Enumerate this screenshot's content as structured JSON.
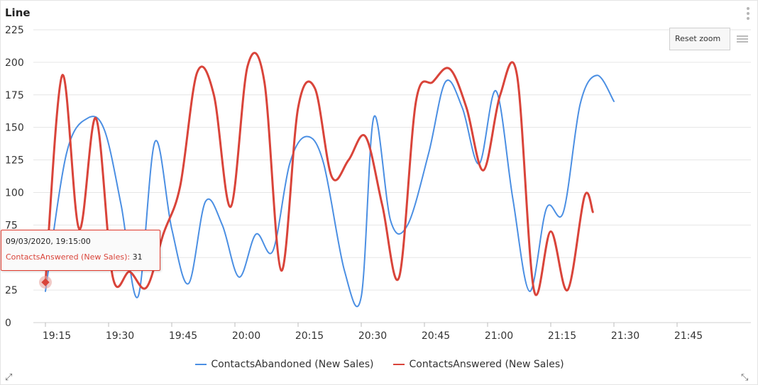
{
  "chart_data": {
    "type": "line",
    "title": "Line",
    "ylim": [
      0,
      225
    ],
    "yticks": [
      0,
      25,
      50,
      75,
      100,
      125,
      150,
      175,
      200,
      225
    ],
    "xlim": [
      "19:15",
      "21:51"
    ],
    "xticks": [
      "19:15",
      "19:30",
      "19:45",
      "20:00",
      "20:15",
      "20:30",
      "20:45",
      "21:00",
      "21:15",
      "21:30",
      "21:45"
    ],
    "grid": true,
    "legend_position": "bottom",
    "series": [
      {
        "name": "ContactsAbandoned (New Sales)",
        "color": "#4b8fe3",
        "points": [
          [
            "19:15",
            24
          ],
          [
            "19:20",
            130
          ],
          [
            "19:25",
            157
          ],
          [
            "19:29",
            148
          ],
          [
            "19:33",
            90
          ],
          [
            "19:37",
            20
          ],
          [
            "19:41",
            139
          ],
          [
            "19:45",
            72
          ],
          [
            "19:49",
            30
          ],
          [
            "19:53",
            93
          ],
          [
            "19:57",
            75
          ],
          [
            "20:01",
            35
          ],
          [
            "20:05",
            68
          ],
          [
            "20:09",
            55
          ],
          [
            "20:13",
            122
          ],
          [
            "20:17",
            143
          ],
          [
            "20:21",
            123
          ],
          [
            "20:26",
            40
          ],
          [
            "20:30",
            20
          ],
          [
            "20:33",
            158
          ],
          [
            "20:37",
            78
          ],
          [
            "20:41",
            75
          ],
          [
            "20:46",
            130
          ],
          [
            "20:50",
            185
          ],
          [
            "20:54",
            165
          ],
          [
            "20:58",
            122
          ],
          [
            "21:02",
            178
          ],
          [
            "21:06",
            95
          ],
          [
            "21:10",
            24
          ],
          [
            "21:14",
            88
          ],
          [
            "21:18",
            85
          ],
          [
            "21:22",
            168
          ],
          [
            "21:26",
            190
          ],
          [
            "21:30",
            170
          ]
        ]
      },
      {
        "name": "ContactsAnswered (New Sales)",
        "color": "#d9443a",
        "points": [
          [
            "19:15",
            31
          ],
          [
            "19:19",
            190
          ],
          [
            "19:23",
            72
          ],
          [
            "19:27",
            157
          ],
          [
            "19:31",
            35
          ],
          [
            "19:35",
            39
          ],
          [
            "19:39",
            27
          ],
          [
            "19:43",
            68
          ],
          [
            "19:47",
            105
          ],
          [
            "19:51",
            192
          ],
          [
            "19:55",
            175
          ],
          [
            "19:59",
            89
          ],
          [
            "20:03",
            197
          ],
          [
            "20:07",
            185
          ],
          [
            "20:11",
            40
          ],
          [
            "20:15",
            165
          ],
          [
            "20:19",
            180
          ],
          [
            "20:23",
            112
          ],
          [
            "20:27",
            125
          ],
          [
            "20:31",
            143
          ],
          [
            "20:35",
            90
          ],
          [
            "20:39",
            35
          ],
          [
            "20:43",
            170
          ],
          [
            "20:47",
            185
          ],
          [
            "20:51",
            195
          ],
          [
            "20:55",
            165
          ],
          [
            "20:59",
            117
          ],
          [
            "21:03",
            175
          ],
          [
            "21:07",
            190
          ],
          [
            "21:11",
            25
          ],
          [
            "21:15",
            70
          ],
          [
            "21:19",
            25
          ],
          [
            "21:23",
            97
          ],
          [
            "21:25",
            85
          ]
        ]
      }
    ],
    "tooltip": {
      "date": "09/03/2020, 19:15:00",
      "series": "ContactsAnswered (New Sales)",
      "separator": ":",
      "value": "31"
    }
  },
  "toolbar": {
    "reset_zoom_label": "Reset zoom",
    "reset_zoom_icon": "magnifier-icon",
    "menu_icon": "hamburger-menu-icon",
    "options_icon": "vertical-ellipsis-icon",
    "expand_left_icon": "resize-diagonal-icon",
    "expand_right_icon": "resize-diagonal-icon"
  },
  "corners": {
    "left": "⤢",
    "right": "⤡"
  }
}
